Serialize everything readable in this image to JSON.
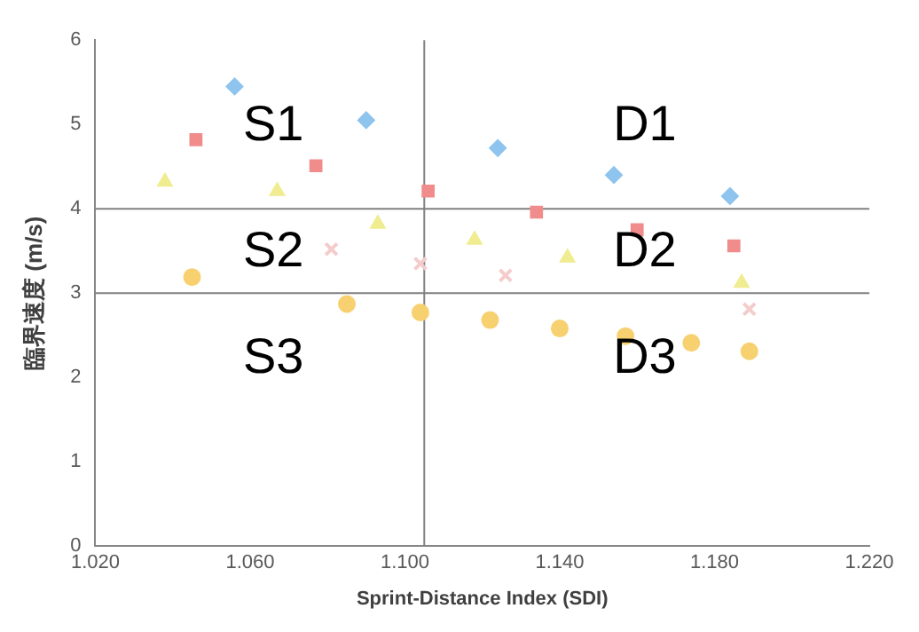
{
  "chart_data": {
    "type": "scatter",
    "xlabel": "Sprint-Distance Index (SDI)",
    "ylabel": "臨界速度 (m/s)",
    "xlim": [
      1.02,
      1.22
    ],
    "xticks": [
      {
        "value": 1.02,
        "label": "1.020"
      },
      {
        "value": 1.06,
        "label": "1.060"
      },
      {
        "value": 1.1,
        "label": "1.100"
      },
      {
        "value": 1.14,
        "label": "1.140"
      },
      {
        "value": 1.18,
        "label": "1.180"
      },
      {
        "value": 1.22,
        "label": "1.220"
      }
    ],
    "ylim": [
      0,
      6
    ],
    "yticks": [
      0,
      1,
      2,
      3,
      4,
      5,
      6
    ],
    "grid": false,
    "legend": false,
    "series": [
      {
        "color": "#8ec4ee",
        "marker": "diamond",
        "x": [
          1.056,
          1.09,
          1.124,
          1.154,
          1.184
        ],
        "values": [
          5.45,
          5.05,
          4.72,
          4.4,
          4.15
        ]
      },
      {
        "color": "#f08c8c",
        "marker": "square",
        "x": [
          1.046,
          1.077,
          1.106,
          1.134,
          1.16,
          1.185
        ],
        "values": [
          4.82,
          4.51,
          4.21,
          3.96,
          3.75,
          3.56
        ]
      },
      {
        "color": "#f0ec90",
        "marker": "triangle",
        "x": [
          1.038,
          1.067,
          1.093,
          1.118,
          1.142,
          1.187
        ],
        "values": [
          4.32,
          4.21,
          3.82,
          3.63,
          3.42,
          3.12
        ]
      },
      {
        "color": "#f4cccc",
        "marker": "cross",
        "x": [
          1.081,
          1.104,
          1.126,
          1.189
        ],
        "values": [
          3.52,
          3.35,
          3.21,
          2.81
        ]
      },
      {
        "color": "#f7d070",
        "marker": "circle",
        "x": [
          1.045,
          1.085,
          1.104,
          1.122,
          1.14,
          1.157,
          1.174,
          1.189
        ],
        "values": [
          3.19,
          2.87,
          2.77,
          2.68,
          2.58,
          2.49,
          2.41,
          2.31
        ]
      }
    ],
    "ref_lines": [
      {
        "axis": "y",
        "value": 4,
        "color": "#808080"
      },
      {
        "axis": "y",
        "value": 3,
        "color": "#808080"
      },
      {
        "axis": "x",
        "value": 1.105,
        "color": "#808080"
      }
    ],
    "annotations": [
      "S1",
      "S2",
      "S3",
      "D1",
      "D2",
      "D3"
    ]
  }
}
